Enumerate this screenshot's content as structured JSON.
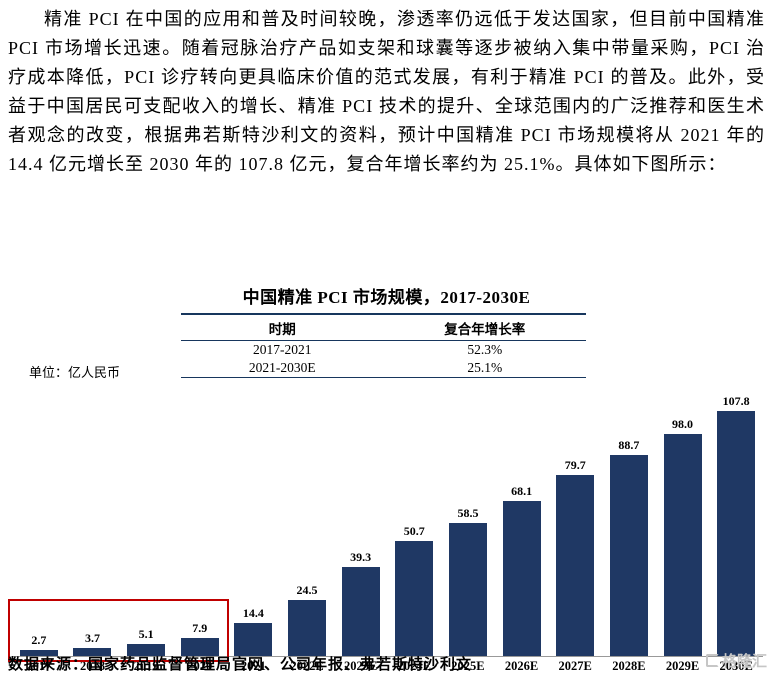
{
  "paragraph": {
    "text": "精准 PCI 在中国的应用和普及时间较晚，渗透率仍远低于发达国家，但目前中国精准 PCI 市场增长迅速。随着冠脉治疗产品如支架和球囊等逐步被纳入集中带量采购，PCI 治疗成本降低，PCI 诊疗转向更具临床价值的范式发展，有利于精准 PCI 的普及。此外，受益于中国居民可支配收入的增长、精准 PCI 技术的提升、全球范围内的广泛推荐和医生术者观念的改变，根据弗若斯特沙利文的资料，预计中国精准 PCI 市场规模将从 2021 年的 14.4 亿元增长至 2030 年的 107.8 亿元，复合年增长率约为 25.1%。具体如下图所示："
  },
  "chart": {
    "title": "中国精准 PCI 市场规模，2017-2030E",
    "unit_label": "单位：亿人民币",
    "cagr_table": {
      "headers": [
        "时期",
        "复合年增长率"
      ],
      "rows": [
        [
          "2017-2021",
          "52.3%"
        ],
        [
          "2021-2030E",
          "25.1%"
        ]
      ]
    },
    "source": "数据来源：国家药品监督管理局官网、公司年报、弗若斯特沙利文",
    "bar_color": "#1f3864",
    "highlight_color": "#c00000"
  },
  "chart_data": {
    "type": "bar",
    "title": "中国精准 PCI 市场规模，2017-2030E",
    "categories": [
      "2017",
      "2018",
      "2019",
      "2020",
      "2021",
      "2022E",
      "2023E",
      "2024E",
      "2025E",
      "2026E",
      "2027E",
      "2028E",
      "2029E",
      "2030E"
    ],
    "values": [
      2.7,
      3.7,
      5.1,
      7.9,
      14.4,
      24.5,
      39.3,
      50.7,
      58.5,
      68.1,
      79.7,
      88.7,
      98.0,
      107.8
    ],
    "value_labels": [
      "2.7",
      "3.7",
      "5.1",
      "7.9",
      "14.4",
      "24.5",
      "39.3",
      "50.7",
      "58.5",
      "68.1",
      "79.7",
      "88.7",
      "98.0",
      "107.8"
    ],
    "ylabel": "亿人民币",
    "ylim": [
      0,
      110
    ],
    "grid": false,
    "legend": "none",
    "annotations": {
      "cagr_2017_2021": "52.3%",
      "cagr_2021_2030E": "25.1%",
      "highlighted_categories": [
        "2017",
        "2018",
        "2019",
        "2020"
      ]
    }
  },
  "watermark": {
    "label": "格隆汇"
  }
}
